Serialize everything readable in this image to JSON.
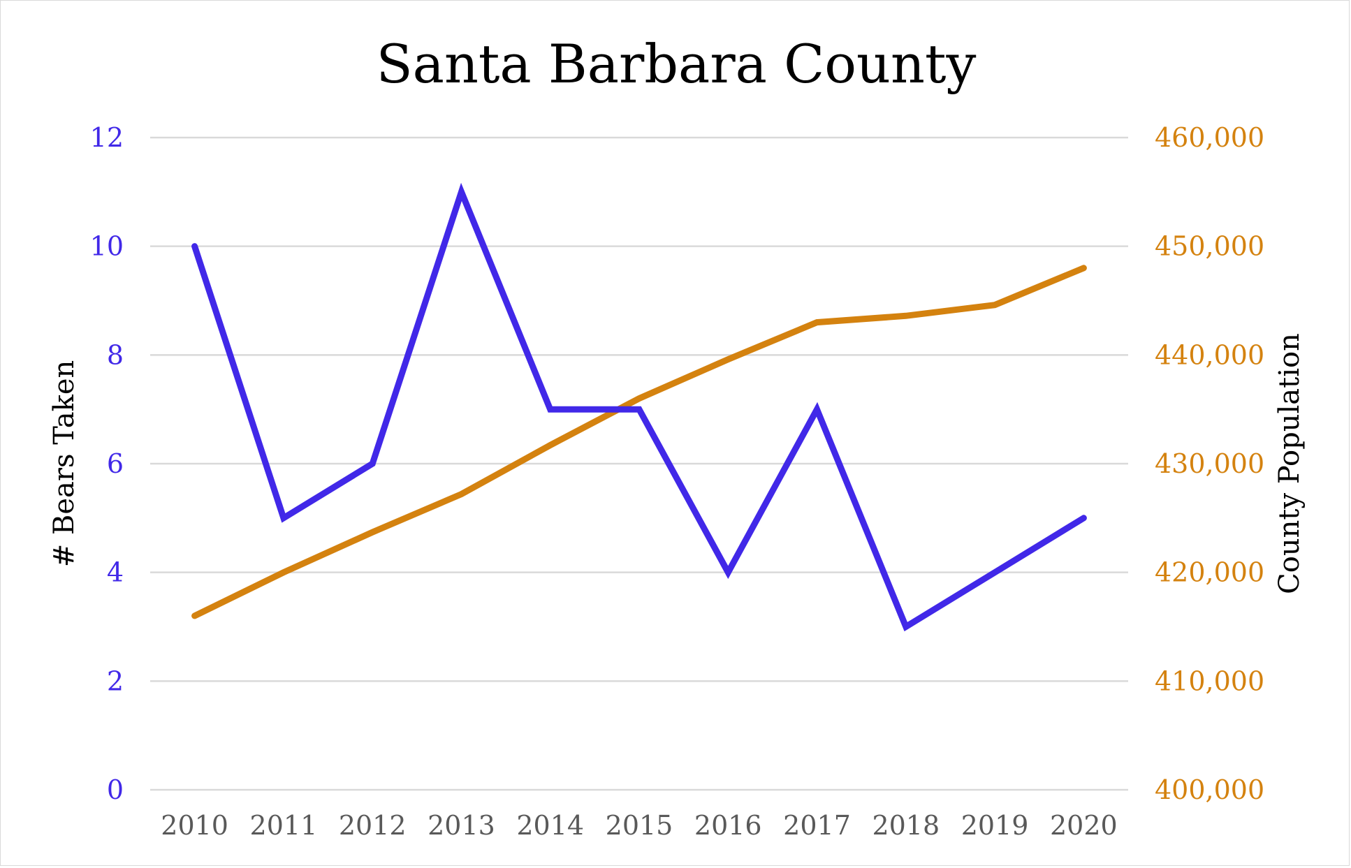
{
  "chart_data": {
    "type": "line",
    "title": "Santa Barbara County",
    "categories": [
      "2010",
      "2011",
      "2012",
      "2013",
      "2014",
      "2015",
      "2016",
      "2017",
      "2018",
      "2019",
      "2020"
    ],
    "y_left": {
      "label": "# Bears Taken",
      "range": [
        0,
        12
      ],
      "ticks": [
        0,
        2,
        4,
        6,
        8,
        10,
        12
      ],
      "tick_labels": [
        "0",
        "2",
        "4",
        "6",
        "8",
        "10",
        "12"
      ],
      "color": "#4128e8"
    },
    "y_right": {
      "label": "County Population",
      "range": [
        400000,
        460000
      ],
      "ticks": [
        400000,
        410000,
        420000,
        430000,
        440000,
        450000,
        460000
      ],
      "tick_labels": [
        "400,000",
        "410,000",
        "420,000",
        "430,000",
        "440,000",
        "450,000",
        "460,000"
      ],
      "color": "#d4820f"
    },
    "series": [
      {
        "axis": "left",
        "color": "#4128e8",
        "values": [
          10,
          5,
          6,
          11,
          7,
          7,
          4,
          7,
          3,
          4,
          5
        ]
      },
      {
        "axis": "right",
        "color": "#d4820f",
        "values": [
          416000,
          420000,
          423700,
          427200,
          431700,
          436000,
          439600,
          443000,
          443600,
          444600,
          448000
        ]
      }
    ],
    "grid": true,
    "legend": "none"
  }
}
